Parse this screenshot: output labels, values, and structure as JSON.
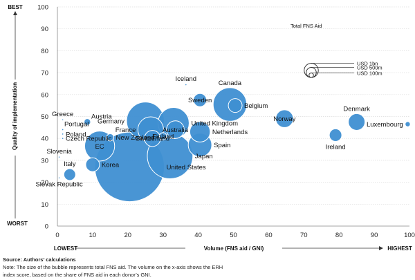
{
  "chart_data": {
    "type": "scatter",
    "variant": "bubble",
    "xlabel": "Volume (FNS aid / GNI)",
    "ylabel": "Quality of implementation",
    "xlim": [
      0,
      100
    ],
    "ylim": [
      0,
      100
    ],
    "xticks": [
      0,
      10,
      20,
      30,
      40,
      50,
      60,
      70,
      80,
      90,
      100
    ],
    "yticks": [
      0,
      10,
      20,
      30,
      40,
      50,
      60,
      70,
      80,
      90,
      100
    ],
    "x_low_label": "LOWEST",
    "x_high_label": "HIGHEST",
    "y_high_label": "BEST",
    "y_low_label": "WORST",
    "bubble_color": "#3f8fd2",
    "points": [
      {
        "name": "United States",
        "x": 20.5,
        "y": 27,
        "aid_usd_m": 2800,
        "label_pos": "right"
      },
      {
        "name": "Japan",
        "x": 32,
        "y": 32,
        "aid_usd_m": 1200,
        "label_pos": "right"
      },
      {
        "name": "Germany",
        "x": 25,
        "y": 48,
        "aid_usd_m": 820,
        "label_pos": "left"
      },
      {
        "name": "France",
        "x": 26.5,
        "y": 44,
        "aid_usd_m": 380,
        "label_pos": "left"
      },
      {
        "name": "United Kingdom",
        "x": 33,
        "y": 47,
        "aid_usd_m": 560,
        "label_pos": "right"
      },
      {
        "name": "Australia",
        "x": 33.5,
        "y": 44,
        "aid_usd_m": 180,
        "label_pos": "center"
      },
      {
        "name": "Finland",
        "x": 30,
        "y": 41,
        "aid_usd_m": 30,
        "label_pos": "center"
      },
      {
        "name": "Switzerland",
        "x": 27,
        "y": 40,
        "aid_usd_m": 150,
        "label_pos": "center"
      },
      {
        "name": "Netherlands",
        "x": 40.5,
        "y": 43,
        "aid_usd_m": 240,
        "label_pos": "right"
      },
      {
        "name": "Spain",
        "x": 40.5,
        "y": 37,
        "aid_usd_m": 320,
        "label_pos": "right"
      },
      {
        "name": "Sweden",
        "x": 40.5,
        "y": 57.5,
        "aid_usd_m": 100,
        "label_pos": "center"
      },
      {
        "name": "Iceland",
        "x": 36.5,
        "y": 64.5,
        "aid_usd_m": 2,
        "label_pos": "above"
      },
      {
        "name": "Canada",
        "x": 49,
        "y": 55.5,
        "aid_usd_m": 650,
        "label_pos": "above"
      },
      {
        "name": "Belgium",
        "x": 50.5,
        "y": 55,
        "aid_usd_m": 110,
        "label_pos": "right"
      },
      {
        "name": "Norway",
        "x": 64.5,
        "y": 49,
        "aid_usd_m": 180,
        "label_pos": "center"
      },
      {
        "name": "Denmark",
        "x": 85,
        "y": 47.5,
        "aid_usd_m": 160,
        "label_pos": "above"
      },
      {
        "name": "Ireland",
        "x": 79,
        "y": 41.5,
        "aid_usd_m": 90,
        "label_pos": "below"
      },
      {
        "name": "Luxembourg",
        "x": 99.5,
        "y": 46.5,
        "aid_usd_m": 15,
        "label_pos": "left"
      },
      {
        "name": "EC",
        "x": 12,
        "y": 36.5,
        "aid_usd_m": 520,
        "label_pos": "center"
      },
      {
        "name": "New Zealand",
        "x": 15,
        "y": 40.5,
        "aid_usd_m": 30,
        "label_pos": "right"
      },
      {
        "name": "Korea",
        "x": 10,
        "y": 28,
        "aid_usd_m": 110,
        "label_pos": "right"
      },
      {
        "name": "Italy",
        "x": 3.5,
        "y": 23.5,
        "aid_usd_m": 80,
        "label_pos": "above"
      },
      {
        "name": "Austria",
        "x": 8.5,
        "y": 47.5,
        "aid_usd_m": 25,
        "label_pos": "right-above"
      },
      {
        "name": "Greece",
        "x": 1.5,
        "y": 48.5,
        "aid_usd_m": 1,
        "label_pos": "above"
      },
      {
        "name": "Portugal",
        "x": 1.5,
        "y": 44,
        "aid_usd_m": 2,
        "label_pos": "right-above"
      },
      {
        "name": "Poland",
        "x": 1.5,
        "y": 42,
        "aid_usd_m": 2,
        "label_pos": "right"
      },
      {
        "name": "Czech Republic",
        "x": 1.5,
        "y": 40,
        "aid_usd_m": 2,
        "label_pos": "right"
      },
      {
        "name": "Slovenia",
        "x": 0.5,
        "y": 31.5,
        "aid_usd_m": 1,
        "label_pos": "above"
      },
      {
        "name": "Slovak Republic",
        "x": 0.5,
        "y": 22,
        "aid_usd_m": 1,
        "label_pos": "below"
      }
    ],
    "legend": {
      "title": "Total FNS Aid",
      "placement": "top-right",
      "items": [
        {
          "label": "USD 1bn",
          "aid_usd_m": 1000
        },
        {
          "label": "USD 500m",
          "aid_usd_m": 500
        },
        {
          "label": "USD 100m",
          "aid_usd_m": 100
        }
      ]
    }
  },
  "notes": {
    "source": "Source: Authors’ calculations",
    "note_line1": "Note: The size of the bubble represents total FNS aid. The volume on the x-axis shows the ERH",
    "note_line2": "index score, based on the share of FNS aid in each donor’s GNI."
  }
}
